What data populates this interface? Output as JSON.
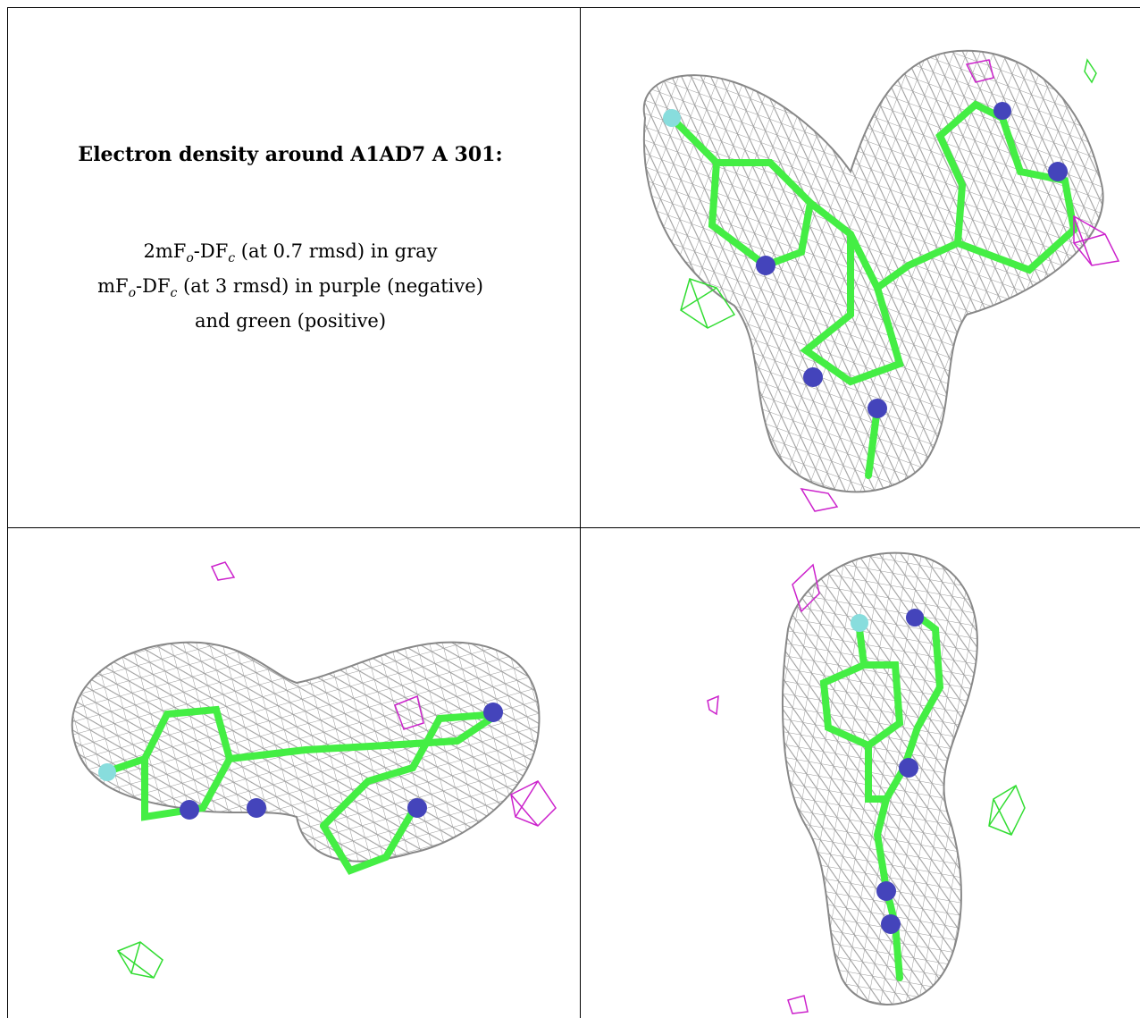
{
  "caption": {
    "title": "Electron density around A1AD7 A 301:",
    "line1": {
      "prefix": "2mF",
      "sub1": "o",
      "mid": "-DF",
      "sub2": "c",
      "suffix": " (at 0.7 rmsd) in gray"
    },
    "line2": {
      "prefix": "mF",
      "sub1": "o",
      "mid": "-DF",
      "sub2": "c",
      "suffix": " (at 3 rmsd) in purple (negative)"
    },
    "line3": "and green (positive)"
  },
  "colors": {
    "mesh_2fofc": "#9a9a9a",
    "mesh_negative": "#cc22cc",
    "mesh_positive": "#33dd33",
    "carbon": "#44ee44",
    "nitrogen": "#4444bb",
    "fluorine": "#88dddd"
  },
  "panels": [
    "view-top",
    "view-side",
    "view-end"
  ]
}
